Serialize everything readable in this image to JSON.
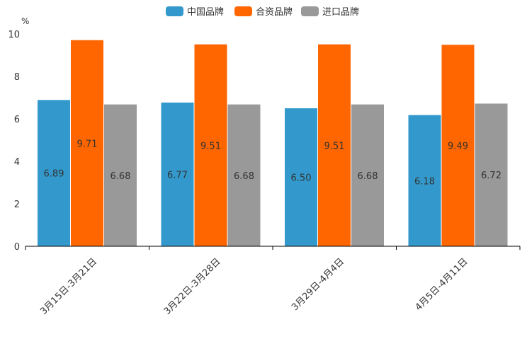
{
  "chart_data": {
    "type": "bar",
    "unit": "%",
    "categories": [
      "3月15日-3月21日",
      "3月22日-3月28日",
      "3月29日-4月4日",
      "4月5日-4月11日"
    ],
    "series": [
      {
        "name": "中国品牌",
        "color": "#3399cc",
        "values": [
          6.89,
          6.77,
          6.5,
          6.18
        ],
        "labels": [
          "6.89",
          "6.77",
          "6.50",
          "6.18"
        ]
      },
      {
        "name": "合资品牌",
        "color": "#ff6600",
        "values": [
          9.71,
          9.51,
          9.51,
          9.49
        ],
        "labels": [
          "9.71",
          "9.51",
          "9.51",
          "9.49"
        ]
      },
      {
        "name": "进口品牌",
        "color": "#999999",
        "values": [
          6.68,
          6.68,
          6.68,
          6.72
        ],
        "labels": [
          "6.68",
          "6.68",
          "6.68",
          "6.72"
        ]
      }
    ],
    "ylim": [
      0,
      10
    ],
    "yticks": [
      "0",
      "2",
      "4",
      "6",
      "8",
      "10"
    ],
    "legend_position": "top-center",
    "grid": false
  }
}
